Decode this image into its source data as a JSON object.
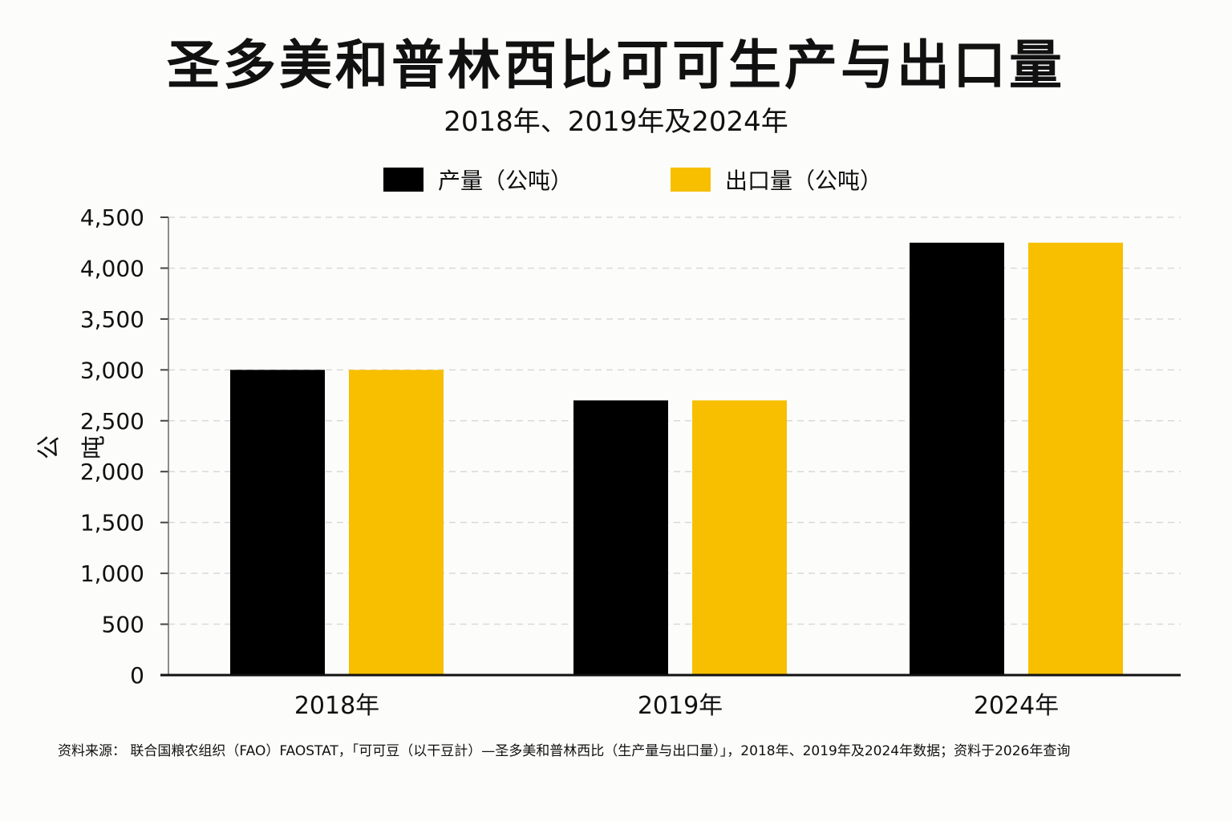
{
  "header": {
    "title": "圣多美和普林西比可可生产与出口量",
    "subtitle": "2018年、2019年及2024年"
  },
  "legend": [
    {
      "label": "产量（公吨）",
      "color": "#000000"
    },
    {
      "label": "出口量（公吨）",
      "color": "#f7bf00"
    }
  ],
  "chart_data": {
    "type": "bar",
    "categories": [
      "2018年",
      "2019年",
      "2024年"
    ],
    "series": [
      {
        "name": "产量（公吨）",
        "color": "#000000",
        "values": [
          3000,
          2700,
          4250
        ]
      },
      {
        "name": "出口量（公吨）",
        "color": "#f7bf00",
        "values": [
          3000,
          2700,
          4250
        ]
      }
    ],
    "title": "圣多美和普林西比可可生产与出口量",
    "subtitle": "2018年、2019年及2024年",
    "xlabel": "",
    "ylabel": "公吨",
    "ylim": [
      0,
      4500
    ],
    "yticks": [
      0,
      500,
      1000,
      1500,
      2000,
      2500,
      3000,
      3500,
      4000,
      4500
    ],
    "ytick_labels": [
      "0",
      "500",
      "1,000",
      "1,500",
      "2,000",
      "2,500",
      "3,000",
      "3,500",
      "4,000",
      "4,500"
    ],
    "grid": true,
    "legend_position": "top-center"
  },
  "footer": {
    "source": "资料来源： 联合国粮农组织（FAO）FAOSTAT，「可可豆（以干豆計）—圣多美和普林西比（生产量与出口量）」，2018年、2019年及2024年数据；资料于2026年查询"
  }
}
